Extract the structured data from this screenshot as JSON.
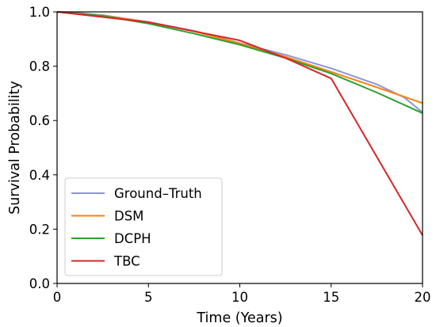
{
  "chart_data": {
    "type": "line",
    "xlabel": "Time (Years)",
    "ylabel": "Survival Probability",
    "xlim": [
      0,
      20
    ],
    "ylim": [
      0.0,
      1.0
    ],
    "xticks": [
      0,
      5,
      10,
      15,
      20
    ],
    "xtick_labels": [
      "0",
      "5",
      "10",
      "15",
      "20"
    ],
    "yticks": [
      0.0,
      0.2,
      0.4,
      0.6,
      0.8,
      1.0
    ],
    "ytick_labels": [
      "0.0",
      "0.2",
      "0.4",
      "0.6",
      "0.8",
      "1.0"
    ],
    "grid": false,
    "legend_position": "lower-left",
    "series": [
      {
        "name": "Ground–Truth",
        "color": "#8f94dc",
        "x": [
          0,
          1,
          2.5,
          5,
          7.5,
          10,
          12.5,
          15,
          17.5,
          19,
          20
        ],
        "y": [
          1.0,
          0.997,
          0.988,
          0.963,
          0.93,
          0.885,
          0.842,
          0.792,
          0.733,
          0.685,
          0.63
        ]
      },
      {
        "name": "DSM",
        "color": "#ff7f0e",
        "x": [
          0,
          2.5,
          5,
          7.5,
          10,
          12.5,
          15,
          17.5,
          20
        ],
        "y": [
          1.0,
          0.986,
          0.962,
          0.928,
          0.884,
          0.835,
          0.779,
          0.722,
          0.664
        ]
      },
      {
        "name": "DCPH",
        "color": "#2ca02c",
        "x": [
          0,
          2.5,
          5,
          7.5,
          10,
          12.5,
          15,
          17.5,
          20
        ],
        "y": [
          1.0,
          0.985,
          0.957,
          0.92,
          0.879,
          0.83,
          0.773,
          0.703,
          0.627
        ]
      },
      {
        "name": "TBC",
        "color": "#d62728",
        "x": [
          0,
          5,
          10,
          12.5,
          15,
          20
        ],
        "y": [
          1.0,
          0.962,
          0.895,
          0.83,
          0.755,
          0.177
        ]
      }
    ]
  }
}
